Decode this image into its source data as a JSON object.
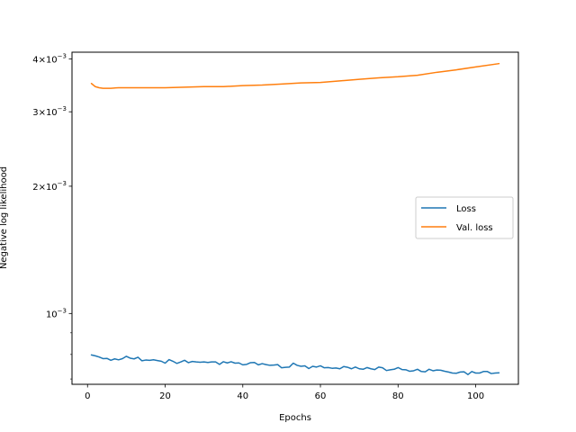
{
  "chart_data": {
    "type": "line",
    "title": "",
    "xlabel": "Epochs",
    "ylabel": "Negative log likelihood",
    "xlim": [
      -4,
      111
    ],
    "ylim": [
      0.00068,
      0.00415
    ],
    "yscale": "log",
    "grid": false,
    "legend_position": "center-right",
    "x_ticks": [
      0,
      20,
      40,
      60,
      80,
      100
    ],
    "x_tick_labels": [
      "0",
      "20",
      "40",
      "60",
      "80",
      "100"
    ],
    "y_ticks": [
      0.001,
      0.002,
      0.003,
      0.004
    ],
    "y_tick_labels": [
      {
        "mantissa": "",
        "exp": "−3"
      },
      {
        "mantissa": "2",
        "exp": "−3"
      },
      {
        "mantissa": "3",
        "exp": "−3"
      },
      {
        "mantissa": "4",
        "exp": "−3"
      }
    ],
    "series": [
      {
        "name": "Loss",
        "color": "#1f77b4",
        "x": [
          1,
          2,
          3,
          4,
          5,
          6,
          7,
          8,
          9,
          10,
          11,
          12,
          13,
          14,
          15,
          16,
          17,
          18,
          19,
          20,
          21,
          22,
          23,
          24,
          25,
          26,
          27,
          28,
          29,
          30,
          31,
          32,
          33,
          34,
          35,
          36,
          37,
          38,
          39,
          40,
          41,
          42,
          43,
          44,
          45,
          46,
          47,
          48,
          49,
          50,
          51,
          52,
          53,
          54,
          55,
          56,
          57,
          58,
          59,
          60,
          61,
          62,
          63,
          64,
          65,
          66,
          67,
          68,
          69,
          70,
          71,
          72,
          73,
          74,
          75,
          76,
          77,
          78,
          79,
          80,
          81,
          82,
          83,
          84,
          85,
          86,
          87,
          88,
          89,
          90,
          91,
          92,
          93,
          94,
          95,
          96,
          97,
          98,
          99,
          100,
          101,
          102,
          103,
          104,
          105,
          106
        ],
        "values": [
          0.000798,
          0.000794,
          0.000789,
          0.000782,
          0.000783,
          0.000775,
          0.000781,
          0.000777,
          0.000782,
          0.000792,
          0.000784,
          0.000781,
          0.000788,
          0.000773,
          0.000776,
          0.000775,
          0.000777,
          0.000774,
          0.000771,
          0.000763,
          0.000778,
          0.000771,
          0.000762,
          0.000768,
          0.000775,
          0.000765,
          0.00077,
          0.000768,
          0.000767,
          0.000768,
          0.000766,
          0.000768,
          0.000768,
          0.000758,
          0.000769,
          0.000764,
          0.000769,
          0.000763,
          0.000764,
          0.000756,
          0.000758,
          0.000765,
          0.000766,
          0.000756,
          0.000761,
          0.000757,
          0.000754,
          0.000755,
          0.000757,
          0.000744,
          0.000746,
          0.000747,
          0.000763,
          0.000754,
          0.00075,
          0.000752,
          0.000741,
          0.00075,
          0.000747,
          0.000752,
          0.000744,
          0.000745,
          0.000742,
          0.000743,
          0.00074,
          0.000749,
          0.000746,
          0.00074,
          0.000747,
          0.00074,
          0.000738,
          0.000745,
          0.00074,
          0.000737,
          0.000747,
          0.000744,
          0.000733,
          0.000736,
          0.000738,
          0.000745,
          0.000737,
          0.000736,
          0.00073,
          0.000732,
          0.000738,
          0.000729,
          0.000728,
          0.000738,
          0.000732,
          0.000735,
          0.000734,
          0.00073,
          0.000727,
          0.000723,
          0.000722,
          0.000727,
          0.000728,
          0.000717,
          0.000729,
          0.000723,
          0.000723,
          0.000729,
          0.000729,
          0.000721,
          0.000723,
          0.000724
        ]
      },
      {
        "name": "Val. loss",
        "color": "#ff7f0e",
        "x": [
          1,
          2,
          3,
          4,
          5,
          6,
          8,
          10,
          15,
          20,
          25,
          30,
          35,
          40,
          45,
          50,
          55,
          60,
          65,
          70,
          75,
          80,
          85,
          90,
          95,
          100,
          106
        ],
        "values": [
          0.0035,
          0.00344,
          0.00342,
          0.00341,
          0.00341,
          0.00341,
          0.00342,
          0.00342,
          0.00342,
          0.00342,
          0.00343,
          0.00344,
          0.00344,
          0.00346,
          0.00347,
          0.00349,
          0.00351,
          0.00352,
          0.00355,
          0.00358,
          0.00361,
          0.00363,
          0.00366,
          0.00372,
          0.00377,
          0.00383,
          0.0039
        ]
      }
    ]
  }
}
